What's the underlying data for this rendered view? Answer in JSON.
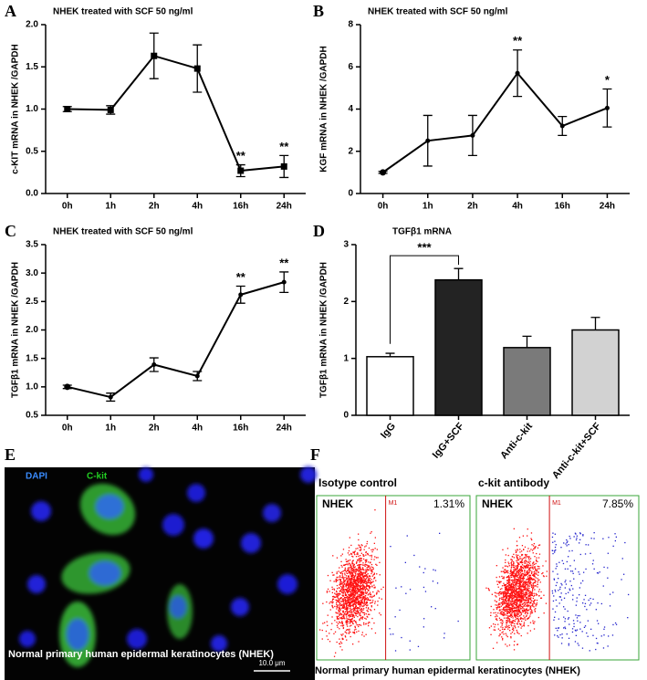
{
  "chart_data": [
    {
      "type": "line",
      "panel": "A",
      "title": "NHEK treated with SCF 50 ng/ml",
      "y_label": "c-KIT mRNA in NHEK /GAPDH",
      "categories": [
        "0h",
        "1h",
        "2h",
        "4h",
        "16h",
        "24h"
      ],
      "values": [
        1.0,
        0.99,
        1.63,
        1.48,
        0.27,
        0.32
      ],
      "errors": [
        0.03,
        0.05,
        0.27,
        0.28,
        0.07,
        0.13
      ],
      "annotations": [
        null,
        null,
        null,
        null,
        "**",
        "**"
      ],
      "marker": "square",
      "color": "#000000",
      "ylim": [
        0,
        2.0
      ],
      "yticks": [
        {
          "value": 0,
          "label": "0.0"
        },
        0.5,
        {
          "value": 1,
          "label": "1.0"
        },
        1.5,
        {
          "value": 2,
          "label": "2.0"
        }
      ]
    },
    {
      "type": "line",
      "panel": "B",
      "title": "NHEK treated with SCF 50 ng/ml",
      "y_label": "KGF mRNA in NHEK /GAPDH",
      "categories": [
        "0h",
        "1h",
        "2h",
        "4h",
        "16h",
        "24h"
      ],
      "values": [
        1.0,
        2.5,
        2.75,
        5.7,
        3.2,
        4.05
      ],
      "errors": [
        0.05,
        1.2,
        0.95,
        1.1,
        0.45,
        0.9
      ],
      "annotations": [
        null,
        null,
        null,
        "**",
        null,
        "*"
      ],
      "marker": "circle",
      "color": "#000000",
      "ylim": [
        0,
        8
      ],
      "yticks": [
        0,
        2,
        4,
        6,
        8
      ]
    },
    {
      "type": "line",
      "panel": "C",
      "title": "NHEK treated with SCF 50 ng/ml",
      "y_label": "TGFβ1 mRNA in NHEK /GAPDH",
      "categories": [
        "0h",
        "1h",
        "2h",
        "4h",
        "16h",
        "24h"
      ],
      "values": [
        1.0,
        0.82,
        1.39,
        1.19,
        2.62,
        2.84
      ],
      "errors": [
        0.03,
        0.07,
        0.12,
        0.08,
        0.15,
        0.18
      ],
      "annotations": [
        null,
        null,
        null,
        null,
        "**",
        "**"
      ],
      "marker": "circle",
      "color": "#000000",
      "ylim": [
        0.5,
        3.5
      ],
      "yticks": [
        0.5,
        {
          "value": 1,
          "label": "1.0"
        },
        1.5,
        {
          "value": 2,
          "label": "2.0"
        },
        2.5,
        {
          "value": 3,
          "label": "3.0"
        },
        3.5
      ]
    },
    {
      "type": "bar",
      "panel": "D",
      "title": "TGFβ1  mRNA",
      "y_label": "TGFβ1 mRNA in NHEK /GAPDH",
      "categories": [
        "IgG",
        "IgG+SCF",
        "Anti-c-kit",
        "Anti-c-kit+SCF"
      ],
      "values": [
        1.03,
        2.38,
        1.19,
        1.5
      ],
      "errors": [
        0.06,
        0.2,
        0.2,
        0.22
      ],
      "annotations": [
        null,
        "***",
        null,
        null
      ],
      "colors": [
        "#ffffff",
        "#232323",
        "#7a7a7a",
        "#d2d2d2"
      ],
      "ylim": [
        0,
        3
      ],
      "yticks": [
        0,
        1,
        2,
        3
      ]
    }
  ],
  "panels": {
    "E": {
      "label": "E",
      "dapi": "DAPI",
      "ckit": "C-kit",
      "caption": "Normal primary human epidermal keratinocytes (NHEK)",
      "scale_bar": "10.0 μm"
    },
    "F": {
      "label": "F",
      "caption": "Normal primary human epidermal keratinocytes (NHEK)",
      "plots": [
        {
          "title": "Isotype control",
          "sample": "NHEK",
          "gate": "M1",
          "percent": "1.31%"
        },
        {
          "title": "c-kit antibody",
          "sample": "NHEK",
          "gate": "M1",
          "percent": "7.85%"
        }
      ]
    }
  }
}
